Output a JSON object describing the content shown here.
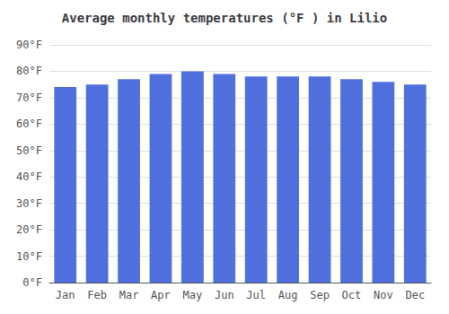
{
  "chart_data": {
    "type": "bar",
    "title": "Average monthly temperatures (°F ) in Lilio",
    "categories": [
      "Jan",
      "Feb",
      "Mar",
      "Apr",
      "May",
      "Jun",
      "Jul",
      "Aug",
      "Sep",
      "Oct",
      "Nov",
      "Dec"
    ],
    "values": [
      74,
      75,
      77,
      79,
      80,
      79,
      78,
      78,
      78,
      77,
      76,
      75
    ],
    "ylim": [
      0,
      90
    ],
    "yticks": [
      {
        "value": 0,
        "label": "0°F"
      },
      {
        "value": 10,
        "label": "10°F"
      },
      {
        "value": 20,
        "label": "20°F"
      },
      {
        "value": 30,
        "label": "30°F"
      },
      {
        "value": 40,
        "label": "40°F"
      },
      {
        "value": 50,
        "label": "50°F"
      },
      {
        "value": 60,
        "label": "60°F"
      },
      {
        "value": 70,
        "label": "70°F"
      },
      {
        "value": 80,
        "label": "80°F"
      },
      {
        "value": 90,
        "label": "90°F"
      }
    ],
    "grid": true
  }
}
